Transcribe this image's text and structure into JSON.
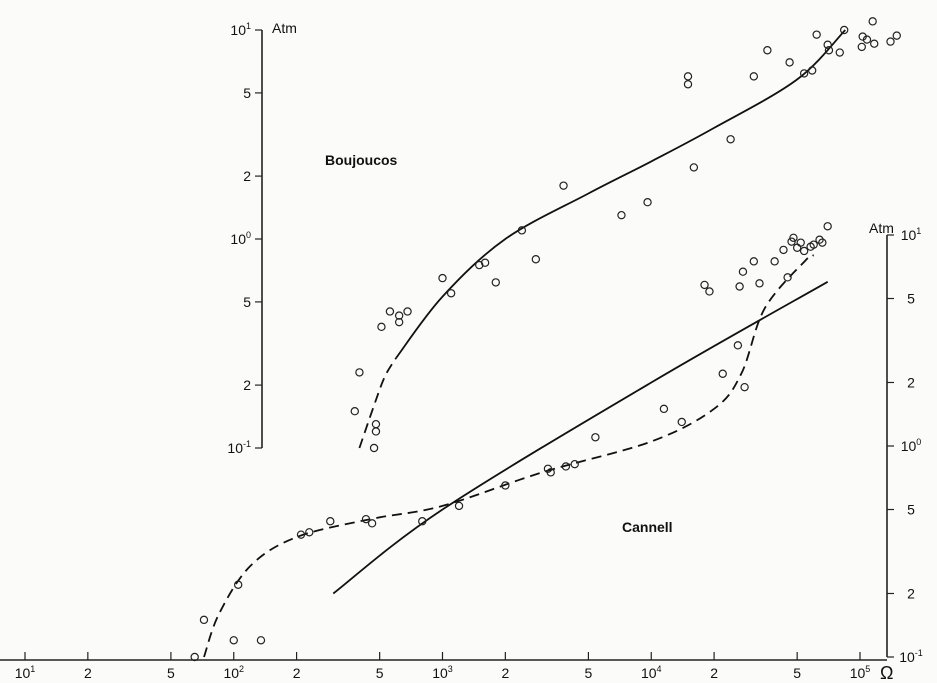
{
  "chart_data": {
    "type": "scatter",
    "x_axis": {
      "scale": "log",
      "range": [
        10,
        100000
      ],
      "unit": "Ω",
      "ticks": [
        {
          "value": 10,
          "base": "10",
          "exp": "1"
        },
        {
          "value": 20,
          "label": "2"
        },
        {
          "value": 50,
          "label": "5"
        },
        {
          "value": 100,
          "base": "10",
          "exp": "2"
        },
        {
          "value": 200,
          "label": "2"
        },
        {
          "value": 500,
          "label": "5"
        },
        {
          "value": 1000,
          "base": "10",
          "exp": "3"
        },
        {
          "value": 2000,
          "label": "2"
        },
        {
          "value": 5000,
          "label": "5"
        },
        {
          "value": 10000,
          "base": "10",
          "exp": "4"
        },
        {
          "value": 20000,
          "label": "2"
        },
        {
          "value": 50000,
          "label": "5"
        },
        {
          "value": 100000,
          "base": "10",
          "exp": "5"
        }
      ]
    },
    "y_axis_left": {
      "scale": "log",
      "range": [
        0.1,
        10
      ],
      "unit": "Atm",
      "ticks": [
        {
          "value": 0.1,
          "base": "10",
          "exp": "-1"
        },
        {
          "value": 0.2,
          "label": "2"
        },
        {
          "value": 0.5,
          "label": "5"
        },
        {
          "value": 1,
          "base": "10",
          "exp": "0"
        },
        {
          "value": 2,
          "label": "2"
        },
        {
          "value": 5,
          "label": "5"
        },
        {
          "value": 10,
          "base": "10",
          "exp": "1"
        }
      ]
    },
    "y_axis_right": {
      "scale": "log",
      "range": [
        0.1,
        10
      ],
      "unit": "Atm",
      "ticks": [
        {
          "value": 0.1,
          "base": "10",
          "exp": "-1"
        },
        {
          "value": 0.2,
          "label": "2"
        },
        {
          "value": 0.5,
          "label": "5"
        },
        {
          "value": 1,
          "base": "10",
          "exp": "0"
        },
        {
          "value": 2,
          "label": "2"
        },
        {
          "value": 5,
          "label": "5"
        },
        {
          "value": 10,
          "base": "10",
          "exp": "1"
        }
      ]
    },
    "series": [
      {
        "name": "Boujoucos",
        "axis": "left",
        "points": [
          [
            380,
            0.15
          ],
          [
            400,
            0.23
          ],
          [
            470,
            0.1
          ],
          [
            480,
            0.12
          ],
          [
            480,
            0.13
          ],
          [
            510,
            0.38
          ],
          [
            560,
            0.45
          ],
          [
            620,
            0.43
          ],
          [
            620,
            0.4
          ],
          [
            680,
            0.45
          ],
          [
            1000,
            0.65
          ],
          [
            1100,
            0.55
          ],
          [
            1500,
            0.75
          ],
          [
            1600,
            0.77
          ],
          [
            1800,
            0.62
          ],
          [
            2400,
            1.1
          ],
          [
            2800,
            0.8
          ],
          [
            3800,
            1.8
          ],
          [
            7200,
            1.3
          ],
          [
            9600,
            1.5
          ],
          [
            15000,
            5.5
          ],
          [
            15000,
            6.0
          ],
          [
            16000,
            2.2
          ],
          [
            24000,
            3.0
          ],
          [
            31000,
            6.0
          ],
          [
            36000,
            8.0
          ],
          [
            46000,
            7.0
          ],
          [
            54000,
            6.2
          ],
          [
            59000,
            6.4
          ],
          [
            62000,
            9.5
          ],
          [
            70000,
            8.5
          ],
          [
            71000,
            8.0
          ],
          [
            80000,
            7.8
          ],
          [
            84000,
            10.0
          ],
          [
            102000,
            8.3
          ],
          [
            103000,
            9.3
          ],
          [
            108000,
            9.0
          ],
          [
            115000,
            11.0
          ],
          [
            117000,
            8.6
          ],
          [
            140000,
            8.8
          ],
          [
            150000,
            9.4
          ]
        ],
        "fit_solid": [
          [
            600,
            0.27
          ],
          [
            1000,
            0.53
          ],
          [
            2000,
            1.0
          ],
          [
            5000,
            1.65
          ],
          [
            10000,
            2.35
          ],
          [
            20000,
            3.4
          ],
          [
            50000,
            5.8
          ],
          [
            85000,
            10.0
          ]
        ],
        "fit_dashed": [
          [
            400,
            0.1
          ],
          [
            470,
            0.16
          ],
          [
            530,
            0.22
          ],
          [
            600,
            0.27
          ]
        ]
      },
      {
        "name": "Cannell",
        "axis": "right",
        "points": [
          [
            65,
            0.1
          ],
          [
            72,
            0.15
          ],
          [
            100,
            0.12
          ],
          [
            105,
            0.22
          ],
          [
            135,
            0.12
          ],
          [
            210,
            0.38
          ],
          [
            230,
            0.39
          ],
          [
            290,
            0.44
          ],
          [
            430,
            0.45
          ],
          [
            460,
            0.43
          ],
          [
            800,
            0.44
          ],
          [
            1200,
            0.52
          ],
          [
            2000,
            0.65
          ],
          [
            3200,
            0.78
          ],
          [
            3300,
            0.75
          ],
          [
            3900,
            0.8
          ],
          [
            4300,
            0.82
          ],
          [
            5400,
            1.1
          ],
          [
            11500,
            1.5
          ],
          [
            14000,
            1.3
          ],
          [
            18000,
            5.8
          ],
          [
            19000,
            5.4
          ],
          [
            22000,
            2.2
          ],
          [
            26000,
            3.0
          ],
          [
            26500,
            5.7
          ],
          [
            27500,
            6.7
          ],
          [
            28000,
            1.9
          ],
          [
            31000,
            7.5
          ],
          [
            33000,
            5.9
          ],
          [
            39000,
            7.5
          ],
          [
            43000,
            8.5
          ],
          [
            45000,
            6.3
          ],
          [
            47000,
            9.3
          ],
          [
            48000,
            9.7
          ],
          [
            50000,
            8.7
          ],
          [
            52000,
            9.2
          ],
          [
            54000,
            8.4
          ],
          [
            58000,
            8.8
          ],
          [
            60000,
            9.0
          ],
          [
            64000,
            9.5
          ],
          [
            66000,
            9.2
          ],
          [
            70000,
            11.0
          ]
        ],
        "fit_solid": [
          [
            300,
            0.2
          ],
          [
            1000,
            0.5
          ],
          [
            10000,
            2.0
          ],
          [
            70000,
            6.0
          ]
        ],
        "fit_dashed": [
          [
            72,
            0.1
          ],
          [
            85,
            0.16
          ],
          [
            120,
            0.27
          ],
          [
            200,
            0.37
          ],
          [
            450,
            0.45
          ],
          [
            1000,
            0.52
          ],
          [
            3000,
            0.75
          ],
          [
            10000,
            1.05
          ],
          [
            20000,
            1.5
          ],
          [
            27000,
            2.2
          ],
          [
            35000,
            4.5
          ],
          [
            55000,
            7.6
          ],
          [
            60000,
            8.0
          ]
        ]
      }
    ]
  }
}
